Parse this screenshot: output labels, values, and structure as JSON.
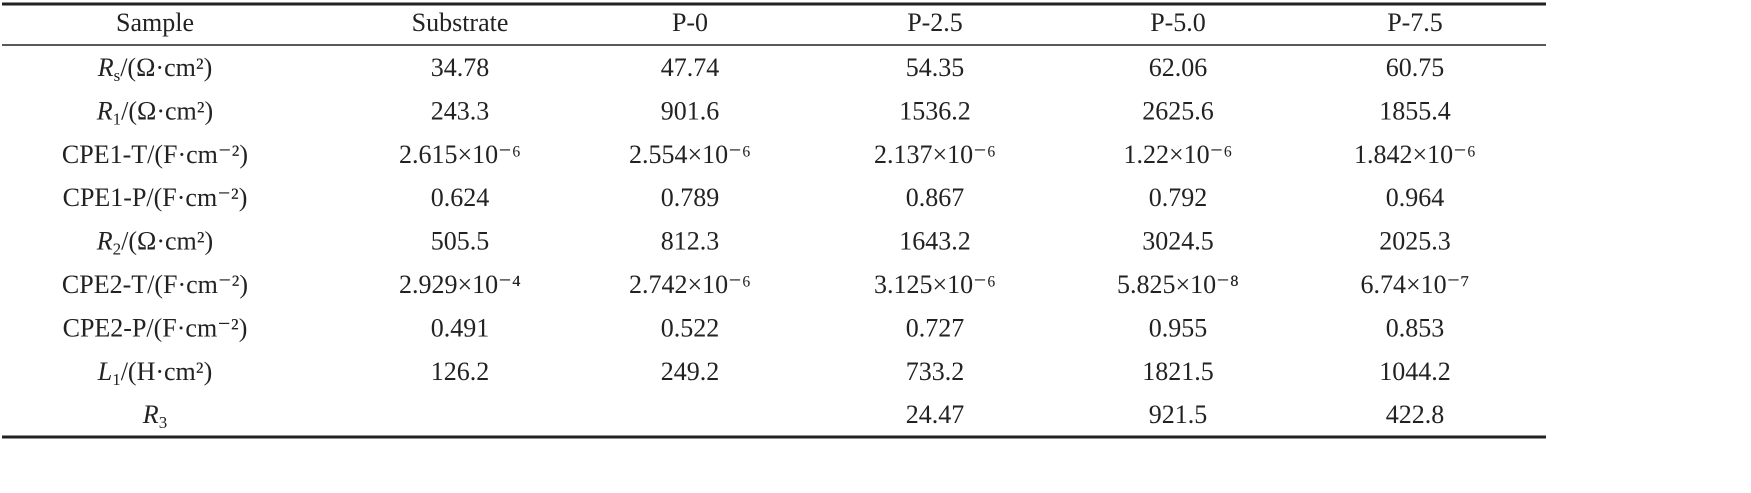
{
  "table": {
    "header": [
      "Sample",
      "Substrate",
      "P-0",
      "P-2.5",
      "P-5.0",
      "P-7.5"
    ],
    "rows": [
      {
        "label": {
          "symbol": "R",
          "subscript": "s",
          "unit": "/(Ω·cm²)"
        },
        "cells": [
          "34.78",
          "47.74",
          "54.35",
          "62.06",
          "60.75"
        ]
      },
      {
        "label": {
          "symbol": "R",
          "subscript": "1",
          "unit": "/(Ω·cm²)"
        },
        "cells": [
          "243.3",
          "901.6",
          "1536.2",
          "2625.6",
          "1855.4"
        ]
      },
      {
        "label": {
          "text": "CPE1-T/(F·cm⁻²)"
        },
        "cells": [
          "2.615×10⁻⁶",
          "2.554×10⁻⁶",
          "2.137×10⁻⁶",
          "1.22×10⁻⁶",
          "1.842×10⁻⁶"
        ]
      },
      {
        "label": {
          "text": "CPE1-P/(F·cm⁻²)"
        },
        "cells": [
          "0.624",
          "0.789",
          "0.867",
          "0.792",
          "0.964"
        ]
      },
      {
        "label": {
          "symbol": "R",
          "subscript": "2",
          "unit": "/(Ω·cm²)"
        },
        "cells": [
          "505.5",
          "812.3",
          "1643.2",
          "3024.5",
          "2025.3"
        ]
      },
      {
        "label": {
          "text": "CPE2-T/(F·cm⁻²)"
        },
        "cells": [
          "2.929×10⁻⁴",
          "2.742×10⁻⁶",
          "3.125×10⁻⁶",
          "5.825×10⁻⁸",
          "6.74×10⁻⁷"
        ]
      },
      {
        "label": {
          "text": "CPE2-P/(F·cm⁻²)"
        },
        "cells": [
          "0.491",
          "0.522",
          "0.727",
          "0.955",
          "0.853"
        ]
      },
      {
        "label": {
          "symbol": "L",
          "subscript": "1",
          "unit": "/(H·cm²)"
        },
        "cells": [
          "126.2",
          "249.2",
          "733.2",
          "1821.5",
          "1044.2"
        ]
      },
      {
        "label": {
          "symbol": "R",
          "subscript": "3"
        },
        "cells": [
          null,
          null,
          "24.47",
          "921.5",
          "422.8"
        ]
      }
    ]
  }
}
